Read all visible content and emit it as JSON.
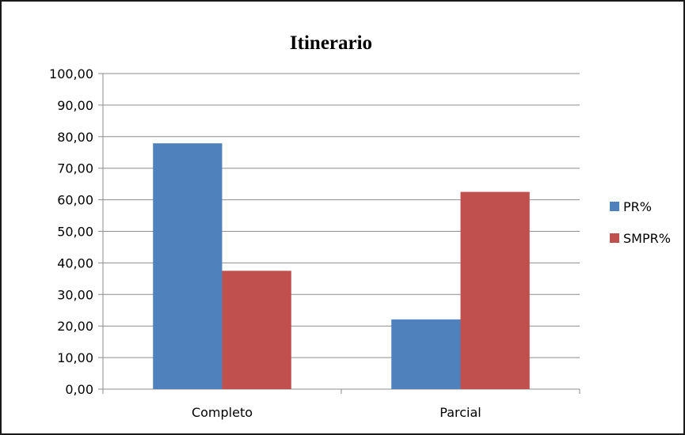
{
  "chart_data": {
    "type": "bar",
    "title": "Itinerario",
    "categories": [
      "Completo",
      "Parcial"
    ],
    "series": [
      {
        "name": "PR%",
        "values": [
          77.9,
          22.1
        ],
        "color": "#4F81BD"
      },
      {
        "name": "SMPR%",
        "values": [
          37.5,
          62.5
        ],
        "color": "#C0504D"
      }
    ],
    "ylim": [
      0,
      100
    ],
    "yticks": [
      "0,00",
      "10,00",
      "20,00",
      "30,00",
      "40,00",
      "50,00",
      "60,00",
      "70,00",
      "80,00",
      "90,00",
      "100,00"
    ],
    "grid": true,
    "legend_position": "right"
  }
}
